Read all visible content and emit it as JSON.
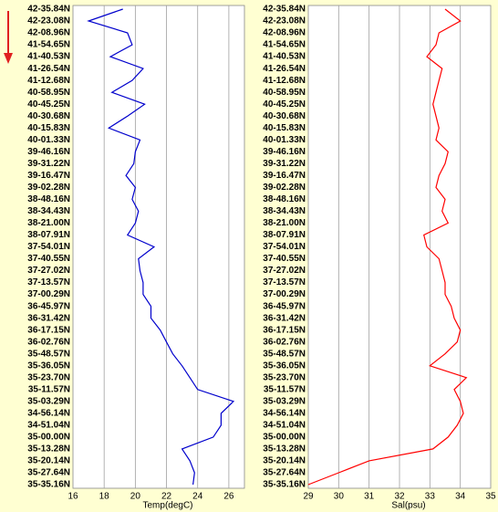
{
  "chart_data": [
    {
      "type": "line",
      "x_axis_label": "Temp(degC)",
      "color": "#0000cc",
      "grid": true,
      "xlim": [
        16,
        27
      ],
      "xticks": [
        16,
        18,
        20,
        22,
        24,
        26
      ],
      "categories": [
        "42-35.84N",
        "42-23.08N",
        "42-08.96N",
        "41-54.65N",
        "41-40.53N",
        "41-26.54N",
        "41-12.68N",
        "40-58.95N",
        "40-45.25N",
        "40-30.68N",
        "40-15.83N",
        "40-01.33N",
        "39-46.16N",
        "39-31.22N",
        "39-16.47N",
        "39-02.28N",
        "38-48.16N",
        "38-34.43N",
        "38-21.00N",
        "38-07.91N",
        "37-54.01N",
        "37-40.55N",
        "37-27.02N",
        "37-13.57N",
        "37-00.29N",
        "36-45.97N",
        "36-31.42N",
        "36-17.15N",
        "36-02.76N",
        "35-48.57N",
        "35-36.05N",
        "35-23.70N",
        "35-11.57N",
        "35-03.29N",
        "34-56.14N",
        "34-51.04N",
        "35-00.00N",
        "35-13.28N",
        "35-20.14N",
        "35-27.64N",
        "35-35.16N"
      ],
      "values": [
        19.2,
        17.0,
        19.5,
        19.8,
        18.4,
        20.5,
        19.8,
        18.5,
        20.6,
        19.5,
        18.3,
        20.3,
        20.0,
        19.9,
        19.4,
        20.0,
        19.8,
        20.2,
        20.0,
        19.5,
        21.2,
        20.2,
        20.3,
        20.5,
        20.5,
        21.0,
        21.0,
        21.6,
        22.0,
        22.4,
        23.0,
        23.5,
        24.0,
        26.3,
        25.5,
        25.5,
        25.0,
        23.0,
        23.5,
        23.8,
        23.7
      ]
    },
    {
      "type": "line",
      "x_axis_label": "Sal(psu)",
      "color": "#ff0000",
      "grid": true,
      "xlim": [
        29,
        35
      ],
      "xticks": [
        29,
        30,
        31,
        32,
        33,
        34,
        35
      ],
      "categories": [
        "42-35.84N",
        "42-23.08N",
        "42-08.96N",
        "41-54.65N",
        "41-40.53N",
        "41-26.54N",
        "41-12.68N",
        "40-58.95N",
        "40-45.25N",
        "40-30.68N",
        "40-15.83N",
        "40-01.33N",
        "39-46.16N",
        "39-31.22N",
        "39-16.47N",
        "39-02.28N",
        "38-48.16N",
        "38-34.43N",
        "38-21.00N",
        "38-07.91N",
        "37-54.01N",
        "37-40.55N",
        "37-27.02N",
        "37-13.57N",
        "37-00.29N",
        "36-45.97N",
        "36-31.42N",
        "36-17.15N",
        "36-02.76N",
        "35-48.57N",
        "35-36.05N",
        "35-23.70N",
        "35-11.57N",
        "35-03.29N",
        "34-56.14N",
        "34-51.04N",
        "35-00.00N",
        "35-13.28N",
        "35-20.14N",
        "35-27.64N",
        "35-35.16N"
      ],
      "values": [
        33.5,
        34.0,
        33.3,
        33.2,
        32.9,
        33.4,
        33.3,
        33.2,
        33.1,
        33.2,
        33.3,
        33.2,
        33.6,
        33.5,
        33.3,
        33.2,
        33.5,
        33.4,
        33.6,
        32.8,
        32.9,
        33.3,
        33.4,
        33.5,
        33.5,
        33.7,
        33.8,
        34.0,
        33.9,
        33.5,
        33.0,
        34.2,
        33.8,
        34.0,
        34.1,
        33.9,
        33.6,
        33.1,
        31.0,
        30.0,
        29.0
      ]
    }
  ]
}
